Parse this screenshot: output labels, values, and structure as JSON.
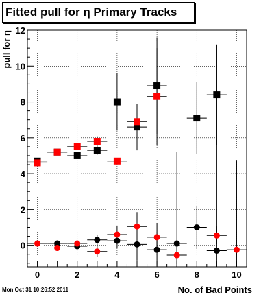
{
  "title": "Fitted pull for  η Primary Tracks",
  "timestamp": "Mon Oct 31 10:26:52 2011",
  "chart_data": {
    "type": "scatter",
    "title": "Fitted pull for  η Primary Tracks",
    "xlabel": "No. of Bad Points",
    "ylabel": "pull for η",
    "xlim": [
      -0.5,
      10.5
    ],
    "ylim": [
      -1.2,
      12.0
    ],
    "xticks": [
      0,
      2,
      4,
      6,
      8,
      10
    ],
    "yticks": [
      0,
      2,
      4,
      6,
      8,
      10,
      12
    ],
    "grid": true,
    "series": [
      {
        "marker": "square",
        "color": "#000000",
        "points": [
          {
            "x": 0,
            "y": 4.7,
            "err": 0.1
          },
          {
            "x": 1,
            "y": 5.2,
            "err": 0.1
          },
          {
            "x": 2,
            "y": 5.0,
            "err": 0.15
          },
          {
            "x": 3,
            "y": 5.3,
            "err": 0.25
          },
          {
            "x": 4,
            "y": 8.0,
            "err": 1.6
          },
          {
            "x": 5,
            "y": 6.6,
            "err": 1.3
          },
          {
            "x": 6,
            "y": 8.9,
            "err": 2.7
          },
          {
            "x": 8,
            "y": 7.1,
            "err": 2.0
          },
          {
            "x": 9,
            "y": 8.4,
            "err": 2.8
          }
        ]
      },
      {
        "marker": "square",
        "color": "#ff0000",
        "points": [
          {
            "x": 0,
            "y": 4.6,
            "err": 0.05
          },
          {
            "x": 1,
            "y": 5.2,
            "err": 0.05
          },
          {
            "x": 2,
            "y": 5.5,
            "err": 0.05
          },
          {
            "x": 3,
            "y": 5.8,
            "err": 0.25
          },
          {
            "x": 4,
            "y": 4.7,
            "err": 0.1
          },
          {
            "x": 5,
            "y": 6.9,
            "err": 1.0
          },
          {
            "x": 6,
            "y": 8.3,
            "err": 2.7
          }
        ]
      },
      {
        "marker": "circle",
        "color": "#000000",
        "points": [
          {
            "x": 1,
            "y": 0.1,
            "err": 0.05
          },
          {
            "x": 2,
            "y": -0.05,
            "err": 0.1
          },
          {
            "x": 3,
            "y": 0.3,
            "err": 0.3
          },
          {
            "x": 4,
            "y": 0.25,
            "err": 0.4
          },
          {
            "x": 5,
            "y": 0.05,
            "err": 0.9
          },
          {
            "x": 6,
            "y": -0.25,
            "err": 0.9
          },
          {
            "x": 7,
            "y": 0.1,
            "err": 5.1
          },
          {
            "x": 8,
            "y": 1.0,
            "err": 1.2
          },
          {
            "x": 9,
            "y": -0.3,
            "err": 11.5
          }
        ]
      },
      {
        "marker": "circle",
        "color": "#ff0000",
        "points": [
          {
            "x": 0,
            "y": 0.1,
            "err": 0.05
          },
          {
            "x": 1,
            "y": -0.15,
            "err": 0.05
          },
          {
            "x": 2,
            "y": 0.1,
            "err": 0.1
          },
          {
            "x": 3,
            "y": -0.35,
            "err": 0.3
          },
          {
            "x": 4,
            "y": 0.6,
            "err": 0.5
          },
          {
            "x": 5,
            "y": 1.05,
            "err": 0.8
          },
          {
            "x": 6,
            "y": 0.45,
            "err": 0.8
          },
          {
            "x": 7,
            "y": -0.55,
            "err": 0.5
          },
          {
            "x": 9,
            "y": 0.55,
            "err": 0.5
          },
          {
            "x": 10,
            "y": -0.25,
            "err": 5.0
          }
        ]
      }
    ]
  }
}
